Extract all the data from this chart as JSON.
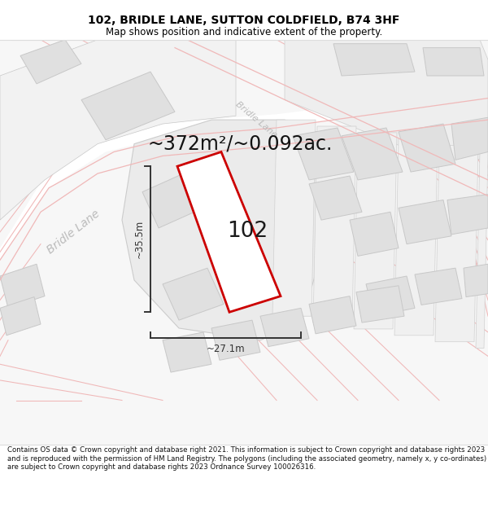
{
  "title": "102, BRIDLE LANE, SUTTON COLDFIELD, B74 3HF",
  "subtitle": "Map shows position and indicative extent of the property.",
  "area_text": "~372m²/~0.092ac.",
  "label_102": "102",
  "dim_width": "~27.1m",
  "dim_height": "~35.5m",
  "street_label_diag": "Bridle Lane",
  "street_label_upper": "Bridle Lane",
  "footer": "Contains OS data © Crown copyright and database right 2021. This information is subject to Crown copyright and database rights 2023 and is reproduced with the permission of HM Land Registry. The polygons (including the associated geometry, namely x, y co-ordinates) are subject to Crown copyright and database rights 2023 Ordnance Survey 100026316.",
  "map_bg": "#f7f7f7",
  "road_fill": "#ffffff",
  "road_edge": "#f0b8b8",
  "plot_edge": "#cc0000",
  "plot_fill": "#ffffff",
  "bld_fill": "#e0e0e0",
  "bld_edge": "#c8c8c8",
  "parcel_fill": "#e8e8e8",
  "parcel_edge": "#c8c8c8",
  "dim_color": "#333333",
  "street_color": "#bbbbbb",
  "title_fontsize": 10,
  "subtitle_fontsize": 8.5,
  "area_fontsize": 17,
  "label_fontsize": 19,
  "footer_fontsize": 6.2,
  "street_fontsize": 10,
  "upper_street_fontsize": 8
}
